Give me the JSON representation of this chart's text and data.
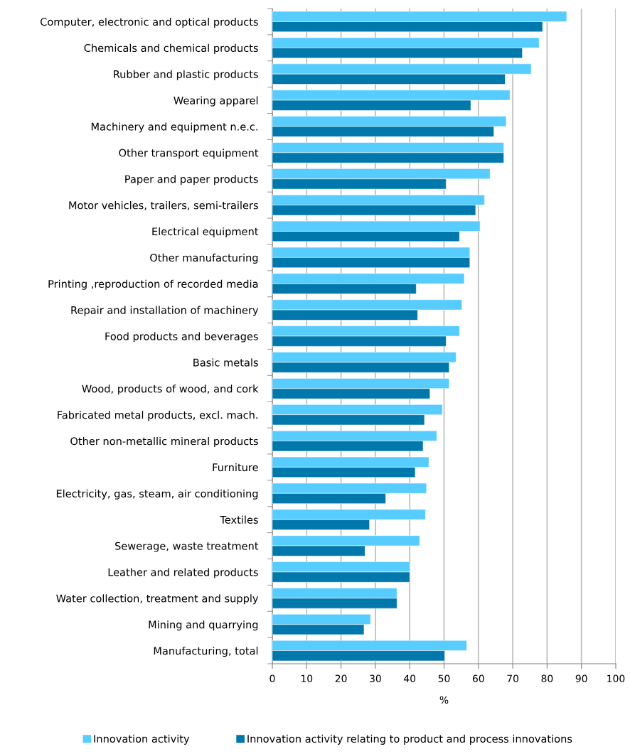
{
  "chart_data": {
    "type": "bar",
    "orientation": "horizontal",
    "xlabel": "%",
    "categories": [
      "Computer, electronic and optical products",
      "Chemicals and chemical products",
      "Rubber and plastic products",
      "Wearing apparel",
      "Machinery and equipment n.e.c.",
      "Other transport equipment",
      "Paper and paper products",
      "Motor vehicles, trailers, semi-trailers",
      "Electrical equipment",
      "Other manufacturing",
      "Printing ,reproduction of recorded media",
      "Repair and installation of machinery",
      "Food products and beverages",
      "Basic metals",
      "Wood, products of wood, and cork",
      "Fabricated metal products, excl. mach.",
      "Other non-metallic mineral products",
      "Furniture",
      "Electricity, gas, steam, air conditioning",
      "Textiles",
      "Sewerage, waste treatment",
      "Leather and related products",
      "Water collection, treatment and supply",
      "Mining and quarrying",
      "Manufacturing, total"
    ],
    "series": [
      {
        "name": "Innovation activity",
        "color": "#57ccff",
        "values": [
          85.7,
          77.7,
          75.4,
          69.2,
          68.1,
          67.4,
          63.4,
          61.8,
          60.5,
          57.5,
          55.9,
          55.2,
          54.5,
          53.5,
          51.5,
          49.5,
          47.9,
          45.6,
          44.9,
          44.6,
          42.9,
          40.0,
          36.3,
          28.6,
          56.6
        ]
      },
      {
        "name": "Innovation activity relating to product and process innovations",
        "color": "#0078ab",
        "values": [
          78.7,
          72.8,
          67.8,
          57.8,
          64.5,
          67.4,
          50.6,
          59.2,
          54.5,
          57.5,
          41.9,
          42.3,
          50.6,
          51.5,
          45.9,
          44.3,
          43.9,
          41.6,
          33.0,
          28.3,
          27.0,
          40.0,
          36.3,
          26.7,
          50.2
        ]
      }
    ],
    "xlim": [
      0,
      100
    ],
    "xticks": [
      0,
      10,
      20,
      30,
      40,
      50,
      60,
      70,
      80,
      90,
      100
    ],
    "grid": "x",
    "legend": "bottom"
  }
}
